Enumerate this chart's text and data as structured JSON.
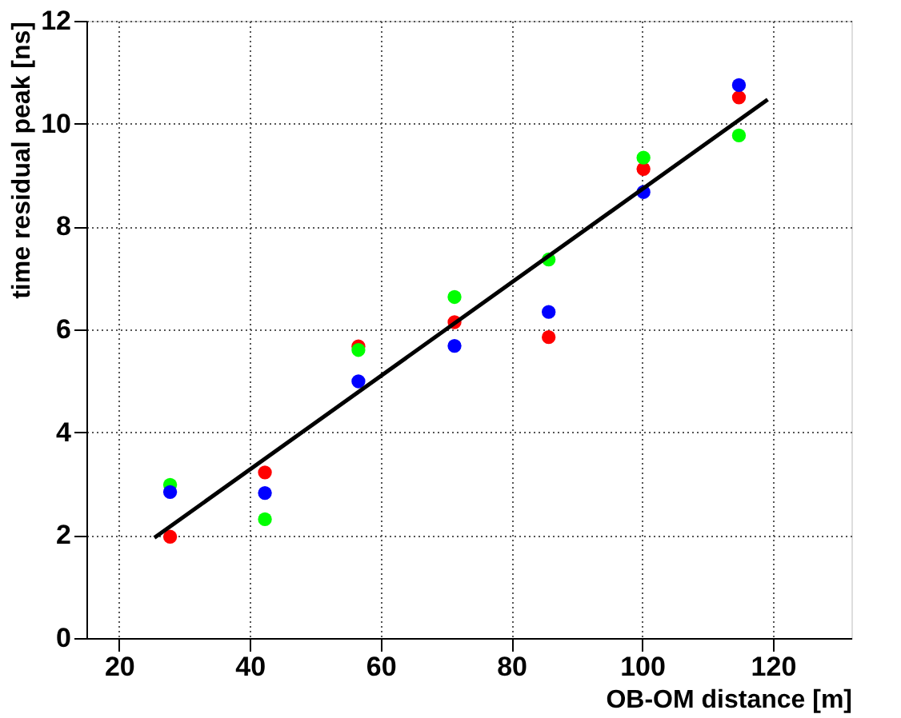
{
  "chart_data": {
    "type": "scatter",
    "xlabel": "OB-OM distance [m]",
    "ylabel": "time residual peak [ns]",
    "xlim": [
      15,
      132
    ],
    "xticks": [
      20,
      40,
      60,
      80,
      100,
      120
    ],
    "ylim": [
      0,
      12
    ],
    "yticks": [
      0,
      2,
      4,
      6,
      8,
      10,
      12
    ],
    "grid": true,
    "marker": "circle",
    "x": [
      27.8,
      42.3,
      56.6,
      71.3,
      85.7,
      100.2,
      114.8
    ],
    "series": [
      {
        "color": "#ff0000",
        "values": [
          1.97,
          3.22,
          5.67,
          6.14,
          5.85,
          9.12,
          10.51
        ]
      },
      {
        "color": "#00ff00",
        "values": [
          2.98,
          2.31,
          5.6,
          6.63,
          7.36,
          9.34,
          9.77
        ]
      },
      {
        "color": "#0000ff",
        "values": [
          2.84,
          2.82,
          4.99,
          5.68,
          6.34,
          8.67,
          10.75
        ]
      },
      {
        "type": "line",
        "marker": "none",
        "color": "#000000",
        "x": [
          25.4,
          119.2
        ],
        "values": [
          1.95,
          10.47
        ]
      }
    ]
  }
}
